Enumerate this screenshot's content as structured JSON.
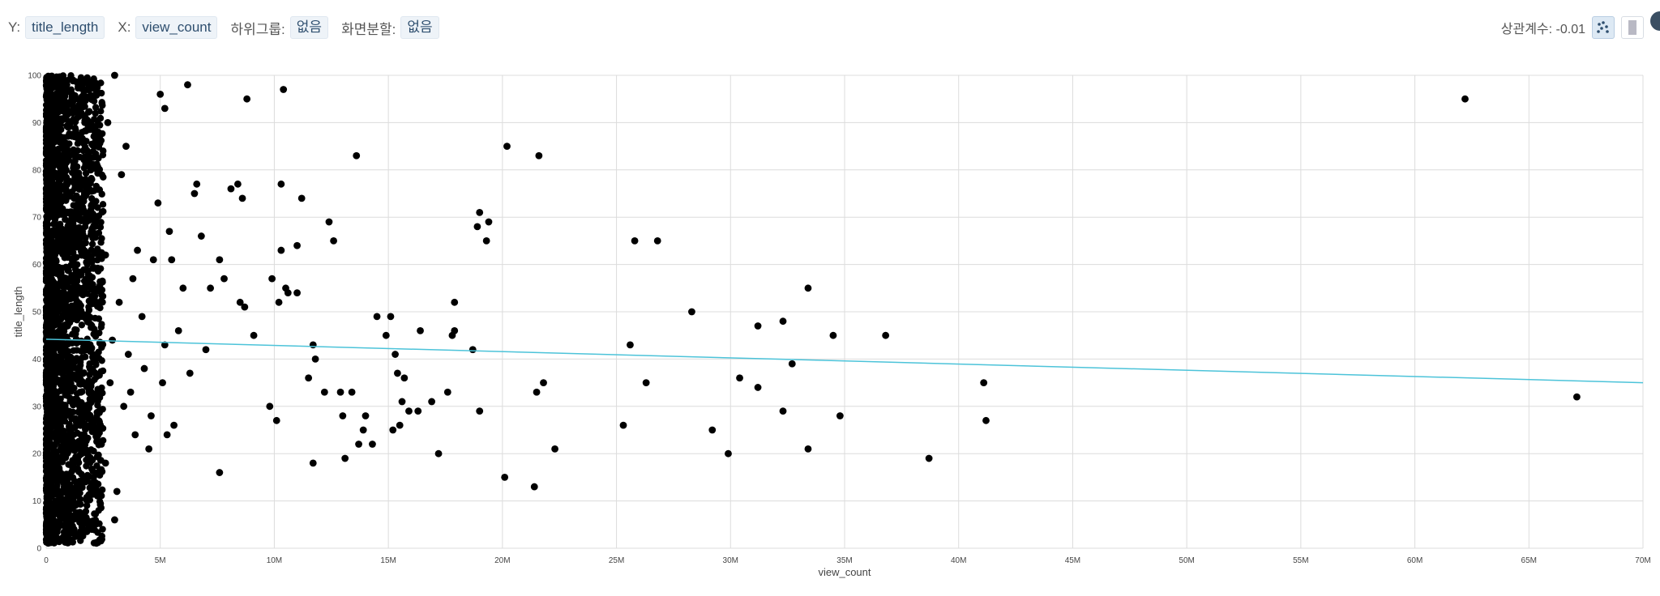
{
  "toolbar": {
    "y_label": "Y:",
    "y_value": "title_length",
    "x_label": "X:",
    "x_value": "view_count",
    "subgroup_label": "하위그룹:",
    "subgroup_value": "없음",
    "split_label": "화면분할:",
    "split_value": "없음",
    "correlation_text": "상관계수: -0.01",
    "scatter_icon": "scatter-plot-icon",
    "bar_icon": "bar-chart-icon"
  },
  "colors": {
    "point": "#000000",
    "trend": "#4cc3d9",
    "grid": "#dcdcdc",
    "tag_bg": "#eef3f8"
  },
  "chart_data": {
    "type": "scatter",
    "title": "",
    "xlabel": "view_count",
    "ylabel": "title_length",
    "xlim": [
      0,
      70000000
    ],
    "ylim": [
      0,
      100
    ],
    "grid": true,
    "legend": "none",
    "x_ticks": [
      0,
      5000000,
      10000000,
      15000000,
      20000000,
      25000000,
      30000000,
      35000000,
      40000000,
      45000000,
      50000000,
      55000000,
      60000000,
      65000000,
      70000000
    ],
    "x_tick_labels": [
      "0",
      "5M",
      "10M",
      "15M",
      "20M",
      "25M",
      "30M",
      "35M",
      "40M",
      "45M",
      "50M",
      "55M",
      "60M",
      "65M",
      "70M"
    ],
    "y_ticks": [
      0,
      10,
      20,
      30,
      40,
      50,
      60,
      70,
      80,
      90,
      100
    ],
    "y_tick_labels": [
      "0",
      "10",
      "20",
      "30",
      "40",
      "50",
      "60",
      "70",
      "80",
      "90",
      "100"
    ],
    "trend_line": {
      "x": [
        0,
        70000000
      ],
      "y": [
        44.2,
        35.0
      ]
    },
    "dense_cluster": {
      "x_range": [
        0,
        2500000
      ],
      "y_range": [
        1,
        100
      ]
    },
    "points": [
      [
        62200000,
        95
      ],
      [
        67100000,
        32
      ],
      [
        41100000,
        35
      ],
      [
        41200000,
        27
      ],
      [
        38700000,
        19
      ],
      [
        36800000,
        45
      ],
      [
        34500000,
        45
      ],
      [
        34800000,
        28
      ],
      [
        33400000,
        55
      ],
      [
        33400000,
        21
      ],
      [
        32700000,
        39
      ],
      [
        32300000,
        48
      ],
      [
        32300000,
        29
      ],
      [
        31200000,
        47
      ],
      [
        31200000,
        34
      ],
      [
        30400000,
        36
      ],
      [
        29900000,
        20
      ],
      [
        29200000,
        25
      ],
      [
        28300000,
        50
      ],
      [
        26800000,
        65
      ],
      [
        26300000,
        35
      ],
      [
        25800000,
        65
      ],
      [
        25600000,
        43
      ],
      [
        25300000,
        26
      ],
      [
        22300000,
        21
      ],
      [
        21800000,
        35
      ],
      [
        21600000,
        83
      ],
      [
        21500000,
        33
      ],
      [
        21400000,
        13
      ],
      [
        20200000,
        85
      ],
      [
        20100000,
        15
      ],
      [
        19400000,
        69
      ],
      [
        19300000,
        65
      ],
      [
        19000000,
        71
      ],
      [
        18900000,
        68
      ],
      [
        19000000,
        29
      ],
      [
        18700000,
        42
      ],
      [
        17900000,
        52
      ],
      [
        17900000,
        46
      ],
      [
        17800000,
        45
      ],
      [
        17600000,
        33
      ],
      [
        17200000,
        20
      ],
      [
        16900000,
        31
      ],
      [
        16300000,
        29
      ],
      [
        16400000,
        46
      ],
      [
        15900000,
        29
      ],
      [
        15700000,
        36
      ],
      [
        15600000,
        31
      ],
      [
        15500000,
        26
      ],
      [
        15400000,
        37
      ],
      [
        15300000,
        41
      ],
      [
        15200000,
        25
      ],
      [
        15100000,
        49
      ],
      [
        14900000,
        45
      ],
      [
        14500000,
        49
      ],
      [
        14300000,
        22
      ],
      [
        14000000,
        28
      ],
      [
        13900000,
        25
      ],
      [
        13700000,
        22
      ],
      [
        13400000,
        33
      ],
      [
        13600000,
        83
      ],
      [
        13100000,
        19
      ],
      [
        13000000,
        28
      ],
      [
        12900000,
        33
      ],
      [
        12600000,
        65
      ],
      [
        12400000,
        69
      ],
      [
        12200000,
        33
      ],
      [
        11800000,
        40
      ],
      [
        11700000,
        18
      ],
      [
        11700000,
        43
      ],
      [
        11500000,
        36
      ],
      [
        11200000,
        74
      ],
      [
        11000000,
        54
      ],
      [
        11000000,
        64
      ],
      [
        10600000,
        54
      ],
      [
        10400000,
        97
      ],
      [
        10300000,
        77
      ],
      [
        10300000,
        63
      ],
      [
        10500000,
        55
      ],
      [
        10200000,
        52
      ],
      [
        10100000,
        27
      ],
      [
        9900000,
        57
      ],
      [
        9800000,
        30
      ],
      [
        9100000,
        45
      ],
      [
        8800000,
        95
      ],
      [
        8700000,
        51
      ],
      [
        8500000,
        52
      ],
      [
        8400000,
        77
      ],
      [
        8100000,
        76
      ],
      [
        7800000,
        57
      ],
      [
        7600000,
        61
      ],
      [
        7600000,
        16
      ],
      [
        7200000,
        55
      ],
      [
        7000000,
        42
      ],
      [
        6800000,
        66
      ],
      [
        6600000,
        77
      ],
      [
        6500000,
        75
      ],
      [
        6300000,
        37
      ],
      [
        6200000,
        98
      ],
      [
        6000000,
        55
      ],
      [
        5800000,
        46
      ],
      [
        5600000,
        26
      ],
      [
        5500000,
        61
      ],
      [
        5400000,
        67
      ],
      [
        5300000,
        24
      ],
      [
        5200000,
        43
      ],
      [
        5100000,
        35
      ],
      [
        4900000,
        73
      ],
      [
        4700000,
        61
      ],
      [
        4600000,
        28
      ],
      [
        4500000,
        21
      ],
      [
        4300000,
        38
      ],
      [
        4200000,
        49
      ],
      [
        4000000,
        63
      ],
      [
        3900000,
        24
      ],
      [
        3800000,
        57
      ],
      [
        3700000,
        33
      ],
      [
        3600000,
        41
      ],
      [
        3500000,
        85
      ],
      [
        3400000,
        30
      ],
      [
        3300000,
        79
      ],
      [
        3200000,
        52
      ],
      [
        3100000,
        12
      ],
      [
        3000000,
        6
      ],
      [
        3000000,
        100
      ],
      [
        2900000,
        44
      ],
      [
        2800000,
        35
      ],
      [
        2700000,
        90
      ],
      [
        2600000,
        62
      ],
      [
        2600000,
        18
      ],
      [
        5000000,
        96
      ],
      [
        5200000,
        93
      ],
      [
        8600000,
        74
      ]
    ]
  }
}
